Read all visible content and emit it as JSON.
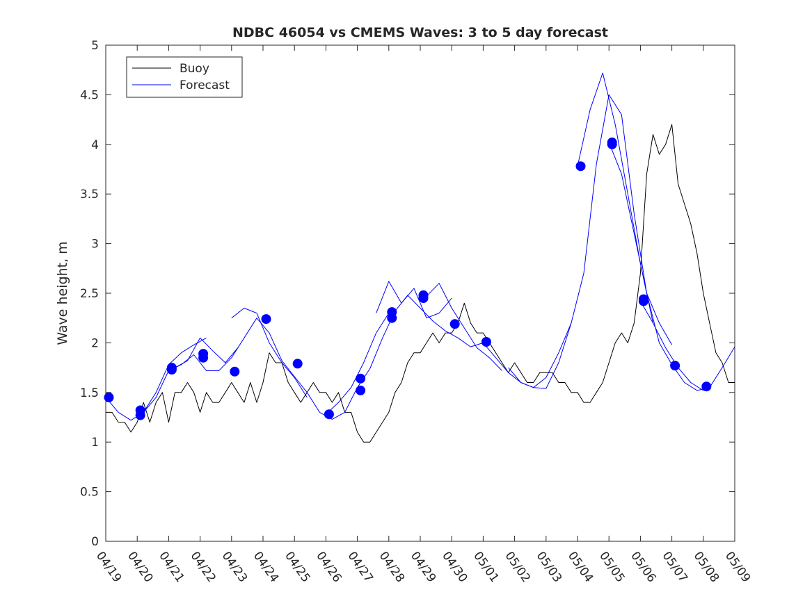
{
  "chart_data": {
    "type": "line",
    "title": "NDBC 46054 vs CMEMS Waves: 3 to 5 day forecast",
    "xlabel": "",
    "ylabel": "Wave height, m",
    "x_tick_labels": [
      "04/19",
      "04/20",
      "04/21",
      "04/22",
      "04/23",
      "04/24",
      "04/25",
      "04/26",
      "04/27",
      "04/28",
      "04/29",
      "04/30",
      "05/01",
      "05/02",
      "05/03",
      "05/04",
      "05/05",
      "05/06",
      "05/07",
      "05/08",
      "05/09"
    ],
    "xlim_days": [
      0,
      20
    ],
    "y_ticks": [
      0,
      0.5,
      1,
      1.5,
      2,
      2.5,
      3,
      3.5,
      4,
      4.5,
      5
    ],
    "y_tick_labels": [
      "0",
      "0.5",
      "1",
      "1.5",
      "2",
      "2.5",
      "3",
      "3.5",
      "4",
      "4.5",
      "5"
    ],
    "ylim": [
      0,
      5
    ],
    "grid": false,
    "legend": {
      "position": "top-left",
      "entries": [
        {
          "label": "Buoy",
          "color": "#000000"
        },
        {
          "label": "Forecast",
          "color": "#0000ff"
        }
      ]
    },
    "colors": {
      "buoy": "#000000",
      "forecast": "#0000ff",
      "marker": "#0000ff"
    },
    "buoy_series": {
      "name": "Buoy",
      "x": [
        0,
        0.2,
        0.4,
        0.6,
        0.8,
        1.0,
        1.2,
        1.4,
        1.6,
        1.8,
        2.0,
        2.2,
        2.4,
        2.6,
        2.8,
        3.0,
        3.2,
        3.4,
        3.6,
        3.8,
        4.0,
        4.2,
        4.4,
        4.6,
        4.8,
        5.0,
        5.2,
        5.4,
        5.6,
        5.8,
        6.0,
        6.2,
        6.4,
        6.6,
        6.8,
        7.0,
        7.2,
        7.4,
        7.6,
        7.8,
        8.0,
        8.2,
        8.4,
        8.6,
        8.8,
        9.0,
        9.2,
        9.4,
        9.6,
        9.8,
        10.0,
        10.2,
        10.4,
        10.6,
        10.8,
        11.0,
        11.2,
        11.4,
        11.6,
        11.8,
        12.0,
        12.2,
        12.4,
        12.6,
        12.8,
        13.0,
        13.2,
        13.4,
        13.6,
        13.8,
        14.0,
        14.2,
        14.4,
        14.6,
        14.8,
        15.0,
        15.2,
        15.4,
        15.6,
        15.8,
        16.0,
        16.2,
        16.4,
        16.6,
        16.8,
        17.0,
        17.2,
        17.4,
        17.6,
        17.8,
        18.0,
        18.2,
        18.4,
        18.6,
        18.8,
        19.0,
        19.2,
        19.4,
        19.6,
        19.8,
        20.0
      ],
      "y": [
        1.3,
        1.3,
        1.2,
        1.2,
        1.1,
        1.2,
        1.4,
        1.2,
        1.4,
        1.5,
        1.2,
        1.5,
        1.5,
        1.6,
        1.5,
        1.3,
        1.5,
        1.4,
        1.4,
        1.5,
        1.6,
        1.5,
        1.4,
        1.6,
        1.4,
        1.6,
        1.9,
        1.8,
        1.8,
        1.6,
        1.5,
        1.4,
        1.5,
        1.6,
        1.5,
        1.5,
        1.4,
        1.5,
        1.3,
        1.3,
        1.1,
        1.0,
        1.0,
        1.1,
        1.2,
        1.3,
        1.5,
        1.6,
        1.8,
        1.9,
        1.9,
        2.0,
        2.1,
        2.0,
        2.1,
        2.1,
        2.2,
        2.4,
        2.2,
        2.1,
        2.1,
        2.0,
        1.9,
        1.8,
        1.7,
        1.8,
        1.7,
        1.6,
        1.6,
        1.7,
        1.7,
        1.7,
        1.6,
        1.6,
        1.5,
        1.5,
        1.4,
        1.4,
        1.5,
        1.6,
        1.8,
        2.0,
        2.1,
        2.0,
        2.2,
        2.7,
        3.7,
        4.1,
        3.9,
        4.0,
        4.2,
        3.6,
        3.4,
        3.2,
        2.9,
        2.5,
        2.2,
        1.9,
        1.8,
        1.6,
        1.6
      ]
    },
    "forecast_series": [
      {
        "name": "Forecast",
        "x": [
          0,
          0.4,
          0.8,
          1.2,
          1.6,
          2.0,
          2.4,
          2.8,
          3.2,
          3.6,
          4.0,
          4.4,
          4.8,
          5.2,
          5.6,
          6.0,
          6.4,
          6.8,
          7.2,
          7.6,
          8.0,
          8.4,
          8.8,
          9.2,
          9.6,
          10.0,
          10.4,
          10.8,
          11.2,
          11.6,
          12.0,
          12.4,
          12.8,
          13.2,
          13.6,
          14.0,
          14.4,
          14.8,
          15.2,
          15.6,
          16.0,
          16.4,
          16.8,
          17.2,
          17.6,
          18.0,
          18.4,
          18.8,
          19.2,
          19.6,
          20.0
        ],
        "y": [
          1.45,
          1.3,
          1.22,
          1.3,
          1.45,
          1.72,
          1.78,
          1.88,
          1.72,
          1.72,
          1.85,
          2.05,
          2.25,
          2.1,
          1.82,
          1.66,
          1.5,
          1.3,
          1.23,
          1.3,
          1.55,
          1.74,
          2.05,
          2.32,
          2.48,
          2.35,
          2.22,
          2.12,
          2.05,
          1.96,
          2.0,
          1.85,
          1.7,
          1.6,
          1.55,
          1.65,
          1.9,
          2.2,
          2.7,
          3.8,
          4.5,
          4.3,
          3.3,
          2.5,
          2.0,
          1.78,
          1.6,
          1.52,
          1.55,
          1.75,
          1.96
        ]
      },
      {
        "name": "Forecast",
        "x": [
          1.2,
          1.6,
          2.0,
          2.4,
          2.8,
          3.2
        ],
        "y": [
          1.3,
          1.5,
          1.78,
          1.9,
          1.98,
          2.05
        ]
      },
      {
        "name": "Forecast",
        "x": [
          2.2,
          2.6,
          3.0,
          3.4,
          3.8,
          4.2
        ],
        "y": [
          1.75,
          1.82,
          2.05,
          1.92,
          1.8,
          1.95
        ]
      },
      {
        "name": "Forecast",
        "x": [
          4.0,
          4.4,
          4.8,
          5.2,
          5.6,
          6.0,
          6.4
        ],
        "y": [
          2.25,
          2.35,
          2.3,
          2.0,
          1.8,
          1.65,
          1.45
        ]
      },
      {
        "name": "Forecast",
        "x": [
          7.0,
          7.4,
          7.8,
          8.2,
          8.6,
          9.0
        ],
        "y": [
          1.28,
          1.4,
          1.55,
          1.8,
          2.1,
          2.3
        ]
      },
      {
        "name": "Forecast",
        "x": [
          8.6,
          9.0,
          9.4,
          9.8,
          10.2,
          10.6,
          11.0
        ],
        "y": [
          2.3,
          2.62,
          2.4,
          2.55,
          2.25,
          2.3,
          2.45
        ]
      },
      {
        "name": "Forecast",
        "x": [
          10.2,
          10.6,
          11.0,
          11.4,
          11.8,
          12.2,
          12.6
        ],
        "y": [
          2.47,
          2.6,
          2.35,
          2.15,
          1.95,
          1.85,
          1.72
        ]
      },
      {
        "name": "Forecast",
        "x": [
          12.8,
          13.2,
          13.6,
          14.0,
          14.4,
          14.8
        ],
        "y": [
          1.75,
          1.6,
          1.55,
          1.54,
          1.8,
          2.2
        ]
      },
      {
        "name": "Forecast",
        "x": [
          15.0,
          15.4,
          15.8,
          16.2,
          16.6,
          17.0,
          17.4
        ],
        "y": [
          3.78,
          4.35,
          4.72,
          4.2,
          3.5,
          2.8,
          2.2
        ]
      },
      {
        "name": "Forecast",
        "x": [
          16.0,
          16.4,
          16.8,
          17.2,
          17.6,
          18.0
        ],
        "y": [
          4.02,
          3.7,
          3.1,
          2.5,
          2.2,
          1.98
        ]
      },
      {
        "name": "Forecast",
        "x": [
          17.0,
          17.4,
          17.8,
          18.2,
          18.6,
          19.0
        ],
        "y": [
          2.42,
          2.2,
          1.95,
          1.75,
          1.6,
          1.52
        ]
      }
    ],
    "forecast_markers": {
      "x": [
        0.1,
        1.1,
        1.1,
        2.1,
        2.1,
        3.1,
        3.1,
        4.1,
        5.1,
        6.1,
        7.1,
        8.1,
        8.1,
        9.1,
        9.1,
        10.1,
        10.1,
        11.1,
        12.1,
        15.1,
        16.1,
        16.1,
        17.1,
        17.1,
        18.1,
        19.1
      ],
      "y": [
        1.45,
        1.32,
        1.27,
        1.75,
        1.73,
        1.89,
        1.85,
        1.71,
        2.24,
        1.79,
        1.28,
        1.64,
        1.52,
        2.31,
        2.25,
        2.48,
        2.45,
        2.19,
        2.01,
        3.78,
        4.02,
        4.0,
        2.44,
        2.42,
        1.77,
        1.56
      ]
    }
  }
}
